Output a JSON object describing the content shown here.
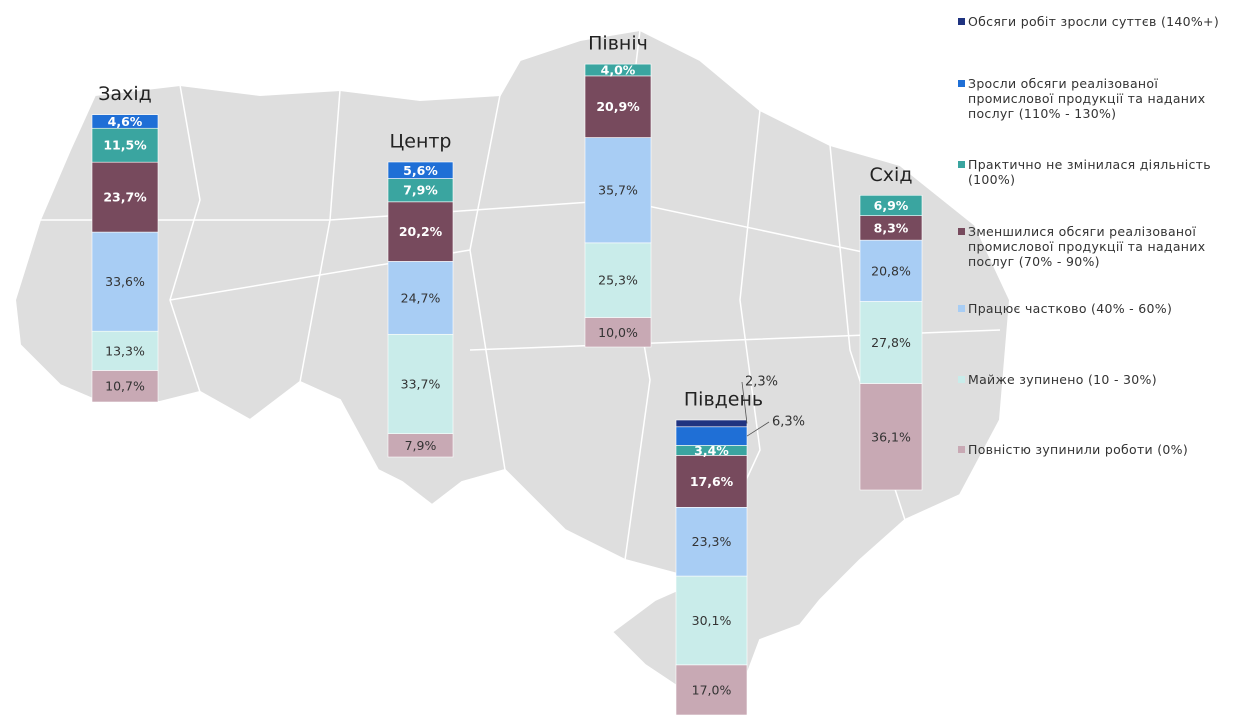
{
  "chart_data": {
    "type": "bar",
    "categories": [
      "Захід",
      "Центр",
      "Північ",
      "Південь",
      "Схід"
    ],
    "series": [
      {
        "name": "Обсяги робіт зросли суттєв (140%+)",
        "color": "#1f3380",
        "values": [
          null,
          null,
          null,
          2.3,
          null
        ],
        "value_labels": [
          null,
          null,
          null,
          "2,3%",
          null
        ]
      },
      {
        "name": "Зросли обсяги реалізованої промислової продукції та наданих послуг (110% - 130%)",
        "color": "#1f6fd6",
        "values": [
          4.6,
          5.6,
          null,
          6.3,
          null
        ],
        "value_labels": [
          "4,6%",
          "5,6%",
          null,
          "6,3%",
          null
        ]
      },
      {
        "name": "Практично не змінилася діяльність (100%)",
        "color": "#3aa5a0",
        "values": [
          11.5,
          7.9,
          4.0,
          3.4,
          6.9
        ],
        "value_labels": [
          "11,5%",
          "7,9%",
          "4,0%",
          "3,4%",
          "6,9%"
        ]
      },
      {
        "name": "Зменшилися обсяги реалізованої промислової продукції та наданих послуг (70% - 90%)",
        "color": "#774a5d",
        "values": [
          23.7,
          20.2,
          20.9,
          17.6,
          8.3
        ],
        "value_labels": [
          "23,7%",
          "20,2%",
          "20,9%",
          "17,6%",
          "8,3%"
        ]
      },
      {
        "name": "Працює частково (40% - 60%)",
        "color": "#a8cdf4",
        "values": [
          33.6,
          24.7,
          35.7,
          23.3,
          20.8
        ],
        "value_labels": [
          "33,6%",
          "24,7%",
          "35,7%",
          "23,3%",
          "20,8%"
        ]
      },
      {
        "name": "Майже зупинено (10 - 30%)",
        "color": "#c9ecea",
        "values": [
          13.3,
          33.7,
          25.3,
          30.1,
          27.8
        ],
        "value_labels": [
          "13,3%",
          "33,7%",
          "25,3%",
          "30,1%",
          "27,8%"
        ]
      },
      {
        "name": "Повністю зупинили роботи (0%)",
        "color": "#c8a9b4",
        "values": [
          10.7,
          7.9,
          10.0,
          17.0,
          36.1
        ],
        "value_labels": [
          "10,7%",
          "7,9%",
          "10,0%",
          "17,0%",
          "36,1%"
        ]
      }
    ]
  }
}
